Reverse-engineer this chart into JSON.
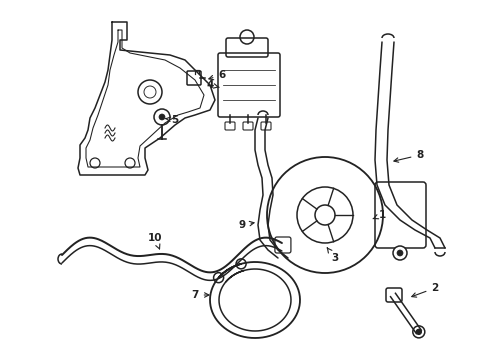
{
  "bg_color": "#ffffff",
  "line_color": "#222222",
  "lw": 1.1,
  "fig_width": 4.89,
  "fig_height": 3.6,
  "dpi": 100,
  "xlim": [
    0,
    489
  ],
  "ylim": [
    0,
    360
  ]
}
